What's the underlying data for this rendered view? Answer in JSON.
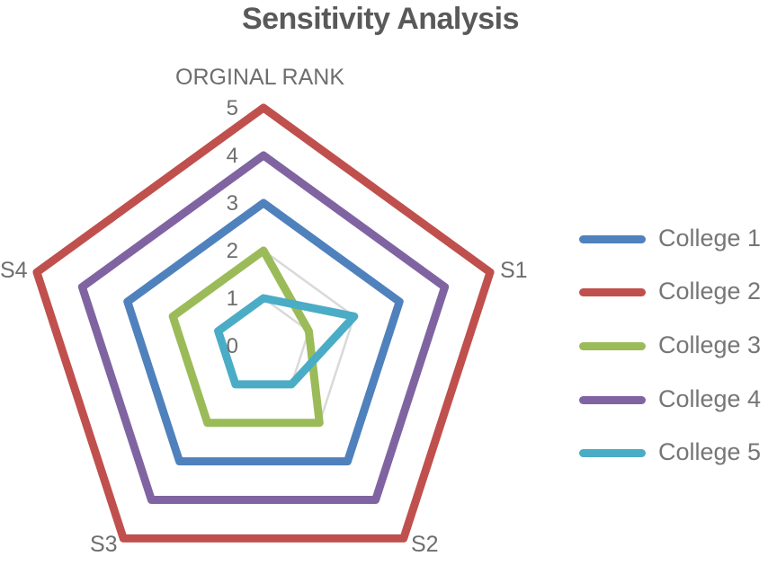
{
  "chart_data": {
    "type": "radar",
    "title": "Sensitivity Analysis",
    "categories": [
      "ORGINAL RANK",
      "S1",
      "S2",
      "S3",
      "S4"
    ],
    "radial_ticks": [
      0,
      1,
      2,
      3,
      4,
      5
    ],
    "rlim": [
      0,
      5
    ],
    "grid": true,
    "legend_position": "right",
    "series": [
      {
        "name": "College 1",
        "color": "#4F81BD",
        "values": [
          3,
          3,
          3,
          3,
          3
        ]
      },
      {
        "name": "College 2",
        "color": "#C0504D",
        "values": [
          5,
          5,
          5,
          5,
          5
        ]
      },
      {
        "name": "College 3",
        "color": "#9BBB59",
        "values": [
          2,
          1,
          2,
          2,
          2
        ]
      },
      {
        "name": "College 4",
        "color": "#8064A2",
        "values": [
          4,
          4,
          4,
          4,
          4
        ]
      },
      {
        "name": "College 5",
        "color": "#4BACC6",
        "values": [
          1,
          2,
          1,
          1,
          1
        ]
      }
    ]
  },
  "labels": {
    "title": "Sensitivity Analysis",
    "axes": [
      "ORGINAL RANK",
      "S1",
      "S2",
      "S3",
      "S4"
    ],
    "ticks": [
      "0",
      "1",
      "2",
      "3",
      "4",
      "5"
    ]
  },
  "legend": {
    "items": [
      {
        "label": "College 1",
        "color": "#4F81BD"
      },
      {
        "label": "College 2",
        "color": "#C0504D"
      },
      {
        "label": "College 3",
        "color": "#9BBB59"
      },
      {
        "label": "College 4",
        "color": "#8064A2"
      },
      {
        "label": "College 5",
        "color": "#4BACC6"
      }
    ]
  },
  "colors": {
    "grid": "#D9D9D9",
    "text": "#6E6E6E",
    "title": "#595959"
  }
}
